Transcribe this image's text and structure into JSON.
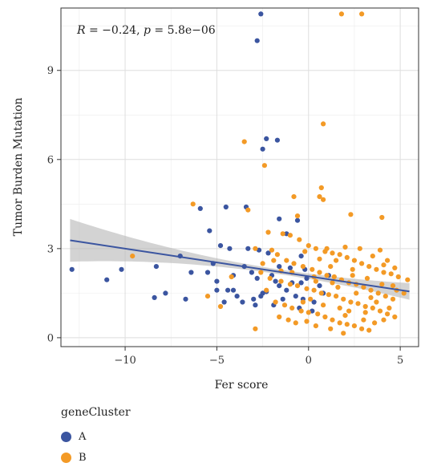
{
  "chart_data": {
    "type": "scatter",
    "xlabel": "Fer score",
    "ylabel": "Tumor Burden Mutation",
    "xlim": [
      -13.5,
      6
    ],
    "ylim": [
      -0.3,
      11.1
    ],
    "x_ticks": [
      -10,
      -5,
      0,
      5
    ],
    "y_ticks": [
      0,
      3,
      6,
      9
    ],
    "grid": true,
    "annotation": {
      "r_symbol": "R",
      "r_value": "= −0.24,",
      "p_symbol": "p",
      "p_value": "= 5.8e−06"
    },
    "regression": {
      "intercept": 2.07,
      "slope": -0.093,
      "x_range": [
        -13,
        5.5
      ],
      "ci_half_width_ends": [
        0.72,
        0.28
      ],
      "ci_half_width_min": 0.08,
      "ci_min_at_x": -1.5
    },
    "legend": {
      "title": "geneCluster",
      "placement": "bottom-left",
      "entries": [
        {
          "label": "A",
          "color": "#3b55a0"
        },
        {
          "label": "B",
          "color": "#f39a26"
        }
      ]
    },
    "series": [
      {
        "name": "A",
        "color": "#3b55a0",
        "points": [
          [
            -2.6,
            10.9
          ],
          [
            -2.8,
            10.0
          ],
          [
            -2.3,
            6.7
          ],
          [
            -2.5,
            6.35
          ],
          [
            -1.7,
            6.65
          ],
          [
            -4.5,
            4.4
          ],
          [
            -3.4,
            4.4
          ],
          [
            -5.9,
            4.35
          ],
          [
            -1.6,
            4.0
          ],
          [
            -0.6,
            3.95
          ],
          [
            -5.4,
            3.6
          ],
          [
            -1.2,
            3.5
          ],
          [
            -4.8,
            3.1
          ],
          [
            -4.3,
            3.0
          ],
          [
            -3.3,
            3.0
          ],
          [
            -2.7,
            2.95
          ],
          [
            -2.2,
            2.85
          ],
          [
            -0.4,
            2.75
          ],
          [
            -7.0,
            2.75
          ],
          [
            -5.2,
            2.5
          ],
          [
            -3.5,
            2.4
          ],
          [
            -8.3,
            2.4
          ],
          [
            -1.0,
            2.35
          ],
          [
            -12.9,
            2.3
          ],
          [
            -10.2,
            2.3
          ],
          [
            -6.4,
            2.2
          ],
          [
            -5.5,
            2.2
          ],
          [
            -4.1,
            2.1
          ],
          [
            -2.8,
            2.0
          ],
          [
            -1.8,
            1.9
          ],
          [
            -11.0,
            1.95
          ],
          [
            -0.9,
            1.85
          ],
          [
            -5.0,
            1.9
          ],
          [
            -4.4,
            1.6
          ],
          [
            -7.8,
            1.5
          ],
          [
            -6.7,
            1.3
          ],
          [
            -8.4,
            1.35
          ],
          [
            -5.0,
            1.6
          ],
          [
            -3.9,
            1.4
          ],
          [
            -3.0,
            1.3
          ],
          [
            -2.5,
            1.5
          ],
          [
            -2.3,
            1.55
          ],
          [
            -1.6,
            1.75
          ],
          [
            -1.2,
            1.6
          ],
          [
            -0.7,
            1.4
          ],
          [
            -0.3,
            1.3
          ],
          [
            0.3,
            1.2
          ],
          [
            -1.9,
            1.1
          ],
          [
            -2.9,
            1.1
          ],
          [
            -4.1,
            1.6
          ],
          [
            -3.6,
            1.2
          ],
          [
            -4.6,
            1.2
          ],
          [
            -0.4,
            1.85
          ],
          [
            0.6,
            1.75
          ],
          [
            -1.4,
            1.3
          ],
          [
            -2.0,
            2.1
          ],
          [
            -0.1,
            2.0
          ],
          [
            0.8,
            1.5
          ],
          [
            -3.1,
            2.2
          ],
          [
            -1.6,
            2.4
          ],
          [
            -0.2,
            2.3
          ],
          [
            1.1,
            2.1
          ],
          [
            -2.6,
            1.4
          ],
          [
            -0.5,
            1.0
          ],
          [
            0.2,
            0.9
          ]
        ]
      },
      {
        "name": "B",
        "color": "#f39a26",
        "points": [
          [
            1.8,
            10.9
          ],
          [
            2.9,
            10.9
          ],
          [
            0.8,
            7.2
          ],
          [
            -3.5,
            6.6
          ],
          [
            -2.4,
            5.8
          ],
          [
            0.7,
            5.05
          ],
          [
            -6.3,
            4.5
          ],
          [
            0.6,
            4.75
          ],
          [
            0.8,
            4.65
          ],
          [
            -0.8,
            4.75
          ],
          [
            2.3,
            4.15
          ],
          [
            -0.6,
            4.1
          ],
          [
            4.0,
            4.05
          ],
          [
            -3.3,
            4.3
          ],
          [
            -9.6,
            2.75
          ],
          [
            -2.2,
            3.55
          ],
          [
            -1.4,
            3.5
          ],
          [
            -1.0,
            3.45
          ],
          [
            -0.5,
            3.3
          ],
          [
            0.0,
            3.1
          ],
          [
            0.4,
            3.0
          ],
          [
            0.9,
            2.9
          ],
          [
            1.3,
            2.85
          ],
          [
            1.7,
            2.8
          ],
          [
            2.1,
            2.7
          ],
          [
            2.5,
            2.6
          ],
          [
            2.9,
            2.5
          ],
          [
            3.3,
            2.4
          ],
          [
            3.7,
            2.3
          ],
          [
            4.1,
            2.2
          ],
          [
            4.5,
            2.15
          ],
          [
            4.9,
            2.05
          ],
          [
            5.4,
            1.95
          ],
          [
            -2.9,
            3.0
          ],
          [
            -2.0,
            2.95
          ],
          [
            -1.7,
            2.8
          ],
          [
            -1.2,
            2.6
          ],
          [
            -0.8,
            2.5
          ],
          [
            -0.3,
            2.4
          ],
          [
            0.2,
            2.3
          ],
          [
            0.6,
            2.2
          ],
          [
            1.0,
            2.1
          ],
          [
            1.4,
            2.05
          ],
          [
            1.8,
            1.95
          ],
          [
            2.2,
            1.85
          ],
          [
            2.6,
            1.8
          ],
          [
            3.0,
            1.7
          ],
          [
            3.4,
            1.6
          ],
          [
            3.8,
            1.5
          ],
          [
            4.2,
            1.4
          ],
          [
            4.6,
            1.3
          ],
          [
            -2.6,
            2.2
          ],
          [
            -2.1,
            2.0
          ],
          [
            -1.5,
            1.9
          ],
          [
            -1.0,
            1.8
          ],
          [
            -0.6,
            1.75
          ],
          [
            -0.1,
            1.65
          ],
          [
            0.3,
            1.6
          ],
          [
            0.7,
            1.5
          ],
          [
            1.1,
            1.45
          ],
          [
            1.5,
            1.4
          ],
          [
            1.9,
            1.3
          ],
          [
            2.3,
            1.2
          ],
          [
            2.7,
            1.15
          ],
          [
            3.1,
            1.05
          ],
          [
            3.5,
            1.0
          ],
          [
            3.9,
            0.9
          ],
          [
            4.3,
            0.8
          ],
          [
            4.7,
            0.7
          ],
          [
            -1.8,
            1.2
          ],
          [
            -1.3,
            1.1
          ],
          [
            -0.9,
            1.0
          ],
          [
            -0.4,
            0.9
          ],
          [
            0.0,
            0.85
          ],
          [
            0.5,
            0.8
          ],
          [
            0.9,
            0.7
          ],
          [
            1.3,
            0.6
          ],
          [
            1.7,
            0.5
          ],
          [
            2.1,
            0.45
          ],
          [
            2.5,
            0.4
          ],
          [
            2.9,
            0.3
          ],
          [
            3.3,
            0.25
          ],
          [
            1.9,
            0.15
          ],
          [
            -2.9,
            0.3
          ],
          [
            -1.6,
            0.7
          ],
          [
            -1.1,
            0.6
          ],
          [
            -0.7,
            0.5
          ],
          [
            0.4,
            0.4
          ],
          [
            1.2,
            0.3
          ],
          [
            3.0,
            0.6
          ],
          [
            3.6,
            0.5
          ],
          [
            4.1,
            0.6
          ],
          [
            4.4,
            1.0
          ],
          [
            0.1,
            1.3
          ],
          [
            1.6,
            1.7
          ],
          [
            2.4,
            2.3
          ],
          [
            3.2,
            2.0
          ],
          [
            4.0,
            1.8
          ],
          [
            4.8,
            1.6
          ],
          [
            1.5,
            2.6
          ],
          [
            2.0,
            3.05
          ],
          [
            0.6,
            2.65
          ],
          [
            -0.2,
            2.9
          ],
          [
            -1.5,
            2.25
          ],
          [
            3.5,
            2.75
          ],
          [
            4.3,
            2.6
          ],
          [
            2.8,
            3.0
          ],
          [
            1.0,
            3.0
          ],
          [
            -0.3,
            1.2
          ],
          [
            0.8,
            1.1
          ],
          [
            2.2,
            0.9
          ],
          [
            3.7,
            1.2
          ],
          [
            4.6,
            1.75
          ],
          [
            0.3,
            2.05
          ],
          [
            1.2,
            2.4
          ],
          [
            -2.3,
            1.6
          ],
          [
            -2.5,
            2.5
          ],
          [
            -4.2,
            2.05
          ],
          [
            -4.8,
            1.05
          ],
          [
            -5.5,
            1.4
          ],
          [
            5.2,
            1.5
          ],
          [
            -0.1,
            0.55
          ],
          [
            1.7,
            1.0
          ],
          [
            2.6,
            1.5
          ],
          [
            3.4,
            1.35
          ],
          [
            4.1,
            2.45
          ],
          [
            3.9,
            2.95
          ],
          [
            2.4,
            2.1
          ],
          [
            1.3,
            1.85
          ],
          [
            0.4,
            1.9
          ],
          [
            -0.9,
            2.2
          ],
          [
            -1.9,
            2.6
          ],
          [
            4.7,
            2.35
          ],
          [
            3.1,
            0.85
          ],
          [
            2.0,
            0.75
          ]
        ]
      }
    ]
  }
}
